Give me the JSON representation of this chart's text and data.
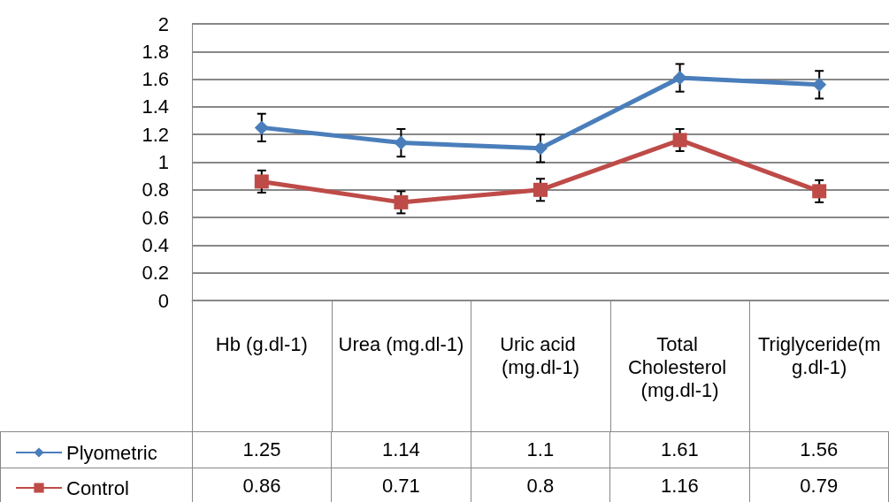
{
  "chart_data": {
    "type": "line",
    "categories": [
      "Hb (g.dl-1)",
      "Urea (mg.dl-1)",
      "Uric acid (mg.dl-1)",
      "Total Cholesterol (mg.dl-1)",
      "Triglyceride(mg.dl-1)"
    ],
    "series": [
      {
        "name": "Plyometric",
        "color": "#4a7ebb",
        "marker": "diamond",
        "values": [
          1.25,
          1.14,
          1.1,
          1.61,
          1.56
        ],
        "errors": [
          0.1,
          0.1,
          0.1,
          0.1,
          0.1
        ]
      },
      {
        "name": "Control",
        "color": "#be4b48",
        "marker": "square",
        "values": [
          0.86,
          0.71,
          0.8,
          1.16,
          0.79
        ],
        "errors": [
          0.08,
          0.08,
          0.08,
          0.08,
          0.08
        ]
      }
    ],
    "ylim": [
      0,
      2
    ],
    "yticks": [
      0,
      0.2,
      0.4,
      0.6,
      0.8,
      1,
      1.2,
      1.4,
      1.6,
      1.8,
      2
    ],
    "grid": "y",
    "legend": "bottom",
    "data_labels": true
  }
}
